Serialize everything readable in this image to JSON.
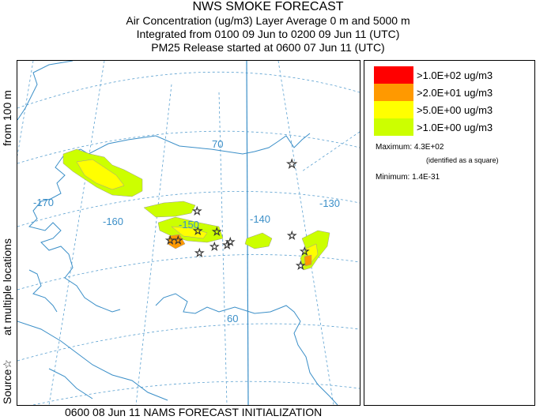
{
  "header": {
    "title": "NWS SMOKE FORECAST",
    "line2": "Air Concentration (ug/m3) Layer Average    0 m and  5000 m",
    "line3": "Integrated from 0100 09 Jun to 0200 09 Jun 11 (UTC)",
    "line4": "PM25 Release started at 0600 07 Jun 11 (UTC)"
  },
  "map": {
    "graticule_labels": {
      "lon_m170": "-170",
      "lon_m160": "-160",
      "lon_m150": "-150",
      "lon_m140": "-140",
      "lon_m130": "-130",
      "lat_70": "70",
      "lat_60": "60"
    },
    "colors": {
      "coast": "#3b8fc8",
      "graticule": "#5aa0d0",
      "level_1": "#ff0000",
      "level_2": "#ff9900",
      "level_3": "#ffff00",
      "level_4": "#ccff00"
    }
  },
  "legend": {
    "items": [
      {
        "label": ">1.0E+02 ug/m3",
        "color": "#ff0000"
      },
      {
        "label": ">2.0E+01 ug/m3",
        "color": "#ff9900"
      },
      {
        "label": ">5.0E+00 ug/m3",
        "color": "#ffff00"
      },
      {
        "label": ">1.0E+00 ug/m3",
        "color": "#ccff00"
      }
    ],
    "maximum": "Maximum: 4.3E+02",
    "max_note": "(identified as a square)",
    "minimum": "Minimum: 1.4E-31"
  },
  "side_text": {
    "source": "Source☆",
    "multiple": "at multiple locations",
    "from": "from   100 m"
  },
  "footer": "0600 08 Jun 11 NAMS FORECAST INITIALIZATION"
}
